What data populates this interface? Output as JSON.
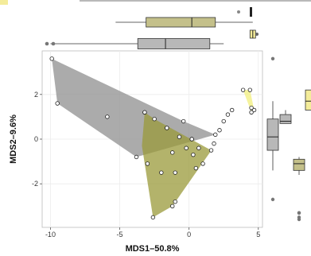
{
  "chart_data": {
    "type": "scatter",
    "title": "",
    "xlabel": "MDS1–50.8%",
    "ylabel": "MDS2–9.6%",
    "xlim": [
      -10.6,
      5.3
    ],
    "ylim": [
      -3.95,
      3.95
    ],
    "xticks": [
      -10,
      -5,
      0,
      5
    ],
    "yticks": [
      -2,
      0,
      2
    ],
    "grid": true,
    "colors": {
      "gray_group": "#8f8f8f",
      "olive_group": "#9a9a3a",
      "yellow_group": "#f2ef7c",
      "box_gray": "#b8b8b8",
      "box_olive": "#c4c08a",
      "box_yellow": "#f4ec9a",
      "background": "#ffffff",
      "grid": "#ececec"
    },
    "series": [
      {
        "group": "gray",
        "hull": [
          [
            -9.9,
            3.6
          ],
          [
            -9.5,
            1.6
          ],
          [
            -3.8,
            -0.8
          ],
          [
            1.9,
            0.2
          ],
          [
            -0.4,
            0.8
          ]
        ],
        "points": [
          [
            -9.9,
            3.6
          ],
          [
            -9.5,
            1.6
          ],
          [
            -5.9,
            1.0
          ],
          [
            -3.8,
            -0.8
          ],
          [
            -3.2,
            1.2
          ],
          [
            -2.5,
            0.9
          ],
          [
            -1.6,
            0.5
          ],
          [
            -0.7,
            0.1
          ],
          [
            0.2,
            0.0
          ],
          [
            0.7,
            -0.4
          ],
          [
            1.9,
            0.2
          ],
          [
            -0.4,
            0.8
          ]
        ]
      },
      {
        "group": "olive",
        "hull": [
          [
            -3.2,
            1.2
          ],
          [
            -2.5,
            0.9
          ],
          [
            1.6,
            -0.5
          ],
          [
            1.5,
            -0.6
          ],
          [
            0.6,
            -1.4
          ],
          [
            -1.2,
            -3.0
          ],
          [
            -2.6,
            -3.5
          ],
          [
            -3.4,
            -0.3
          ]
        ],
        "points": [
          [
            -3.2,
            1.2
          ],
          [
            -2.6,
            -3.5
          ],
          [
            -1.2,
            -3.0
          ],
          [
            -1.0,
            -2.8
          ],
          [
            -3.0,
            -1.1
          ],
          [
            -2.0,
            -1.5
          ],
          [
            -1.0,
            -1.5
          ],
          [
            -1.2,
            -0.6
          ],
          [
            -0.2,
            -0.4
          ],
          [
            0.3,
            -0.7
          ],
          [
            0.5,
            -1.3
          ],
          [
            1.0,
            -1.1
          ],
          [
            1.6,
            -0.5
          ],
          [
            0.2,
            0.0
          ],
          [
            -1.6,
            0.5
          ]
        ]
      },
      {
        "group": "yellow",
        "hull": [
          [
            3.9,
            2.2
          ],
          [
            4.4,
            2.2
          ],
          [
            4.7,
            1.3
          ],
          [
            4.5,
            1.2
          ]
        ],
        "points": [
          [
            3.9,
            2.2
          ],
          [
            4.4,
            2.2
          ],
          [
            4.7,
            1.3
          ],
          [
            4.5,
            1.2
          ],
          [
            4.5,
            1.4
          ]
        ]
      }
    ],
    "extra_points": [
      [
        1.8,
        -0.2
      ],
      [
        2.2,
        0.4
      ],
      [
        2.5,
        0.8
      ],
      [
        2.8,
        1.1
      ],
      [
        3.1,
        1.3
      ]
    ],
    "marginal_x_boxplots": [
      {
        "group": "olive",
        "min": -5.3,
        "q1": -3.1,
        "median": 0.2,
        "q3": 1.9,
        "max": 4.6
      },
      {
        "group": "gray",
        "min": -10.0,
        "q1": -3.7,
        "median": -1.7,
        "q3": 1.5,
        "max": 2.5
      },
      {
        "group": "yellow",
        "q1": 4.4,
        "median": 4.6,
        "q3": 4.8,
        "outliers": [
          4.9
        ]
      }
    ],
    "marginal_y_boxplots": [
      {
        "group": "gray",
        "min": -1.4,
        "q1": -0.5,
        "median": 0.1,
        "q3": 0.9,
        "max": 1.7,
        "outliers": [
          3.6,
          -2.7
        ]
      },
      {
        "group": "gray",
        "q1": 0.7,
        "median": 0.8,
        "q3": 1.1,
        "max": 1.3
      },
      {
        "group": "olive",
        "min": -1.6,
        "q1": -1.4,
        "median": -1.1,
        "q3": -0.9,
        "max": -0.8,
        "outliers": [
          -3.3,
          -3.5
        ]
      },
      {
        "group": "yellow",
        "q1": 1.3,
        "median": 1.7,
        "q3": 2.2
      }
    ]
  }
}
